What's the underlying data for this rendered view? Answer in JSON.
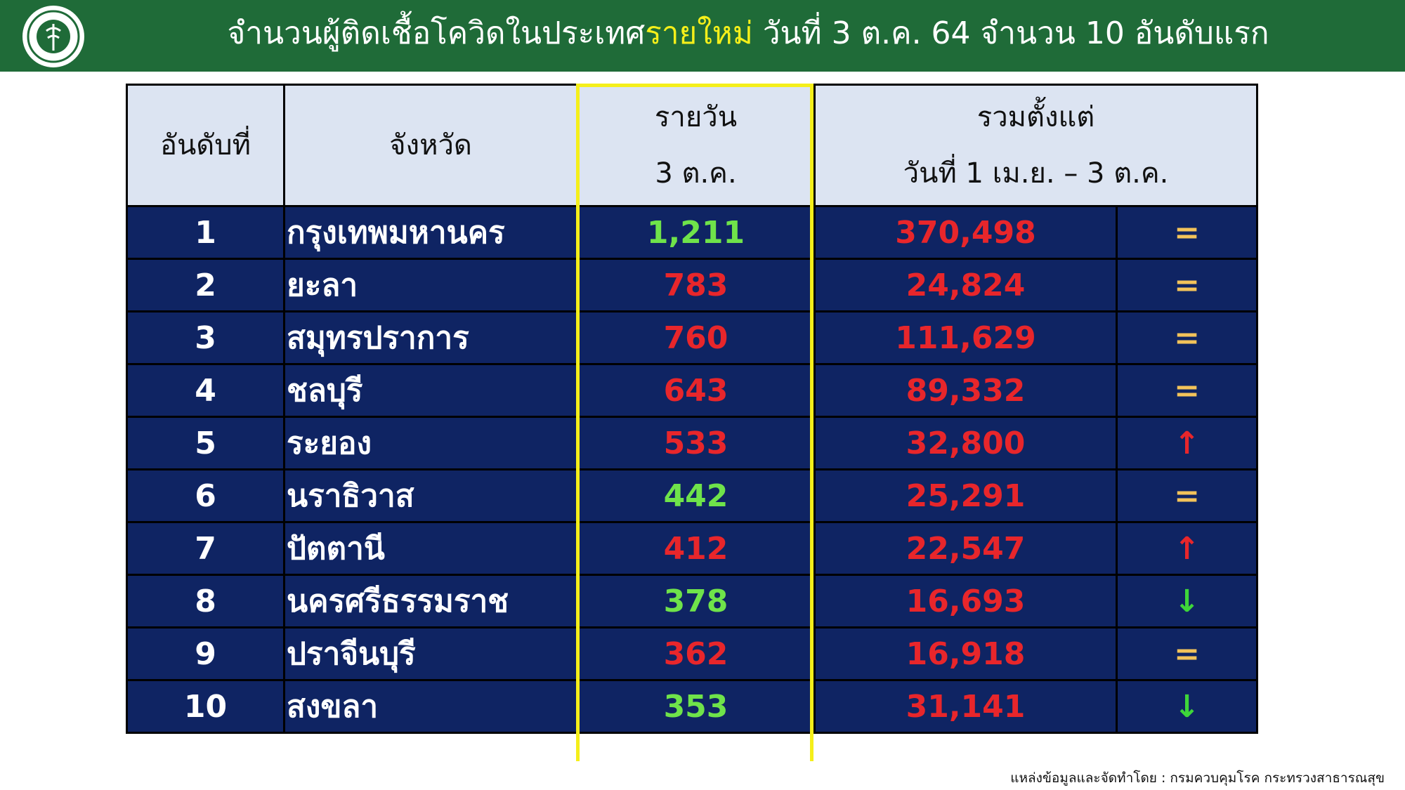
{
  "header": {
    "title_parts": [
      {
        "text": "จำนวนผู้ติดเชื้อโควิดในประเทศ",
        "color": "#ffffff"
      },
      {
        "text": "รายใหม่",
        "color": "#f5ef1a"
      },
      {
        "text": " วันที่ 3 ต.ค. 64 จำนวน 10 อันดับแรก",
        "color": "#ffffff"
      }
    ]
  },
  "table": {
    "columns": [
      {
        "lines": [
          "อันดับที่"
        ]
      },
      {
        "lines": [
          "จังหวัด"
        ]
      },
      {
        "lines": [
          "รายวัน",
          "3 ต.ค."
        ]
      },
      {
        "lines": [
          "รวมตั้งแต่",
          "วันที่ 1 เม.ย. – 3 ต.ค."
        ]
      }
    ],
    "rows": [
      {
        "rank": "1",
        "province": "กรุงเทพมหานคร",
        "daily": "1,211",
        "daily_color": "#6fe34a",
        "total": "370,498",
        "trend": "=",
        "trend_color": "#f3c35a"
      },
      {
        "rank": "2",
        "province": "ยะลา",
        "daily": "783",
        "daily_color": "#e8262b",
        "total": "24,824",
        "trend": "=",
        "trend_color": "#f3c35a"
      },
      {
        "rank": "3",
        "province": "สมุทรปราการ",
        "daily": "760",
        "daily_color": "#e8262b",
        "total": "111,629",
        "trend": "=",
        "trend_color": "#f3c35a"
      },
      {
        "rank": "4",
        "province": "ชลบุรี",
        "daily": "643",
        "daily_color": "#e8262b",
        "total": "89,332",
        "trend": "=",
        "trend_color": "#f3c35a"
      },
      {
        "rank": "5",
        "province": "ระยอง",
        "daily": "533",
        "daily_color": "#e8262b",
        "total": "32,800",
        "trend": "↑",
        "trend_color": "#e8262b"
      },
      {
        "rank": "6",
        "province": "นราธิวาส",
        "daily": "442",
        "daily_color": "#6fe34a",
        "total": "25,291",
        "trend": "=",
        "trend_color": "#f3c35a"
      },
      {
        "rank": "7",
        "province": "ปัตตานี",
        "daily": "412",
        "daily_color": "#e8262b",
        "total": "22,547",
        "trend": "↑",
        "trend_color": "#e8262b"
      },
      {
        "rank": "8",
        "province": "นครศรีธรรมราช",
        "daily": "378",
        "daily_color": "#6fe34a",
        "total": "16,693",
        "trend": "↓",
        "trend_color": "#3ed63a"
      },
      {
        "rank": "9",
        "province": "ปราจีนบุรี",
        "daily": "362",
        "daily_color": "#e8262b",
        "total": "16,918",
        "trend": "=",
        "trend_color": "#f3c35a"
      },
      {
        "rank": "10",
        "province": "สงขลา",
        "daily": "353",
        "daily_color": "#6fe34a",
        "total": "31,141",
        "trend": "↓",
        "trend_color": "#3ed63a"
      }
    ]
  },
  "footer": {
    "source": "แหล่งข้อมูลและจัดทำโดย : กรมควบคุมโรค กระทรวงสาธารณสุข"
  }
}
